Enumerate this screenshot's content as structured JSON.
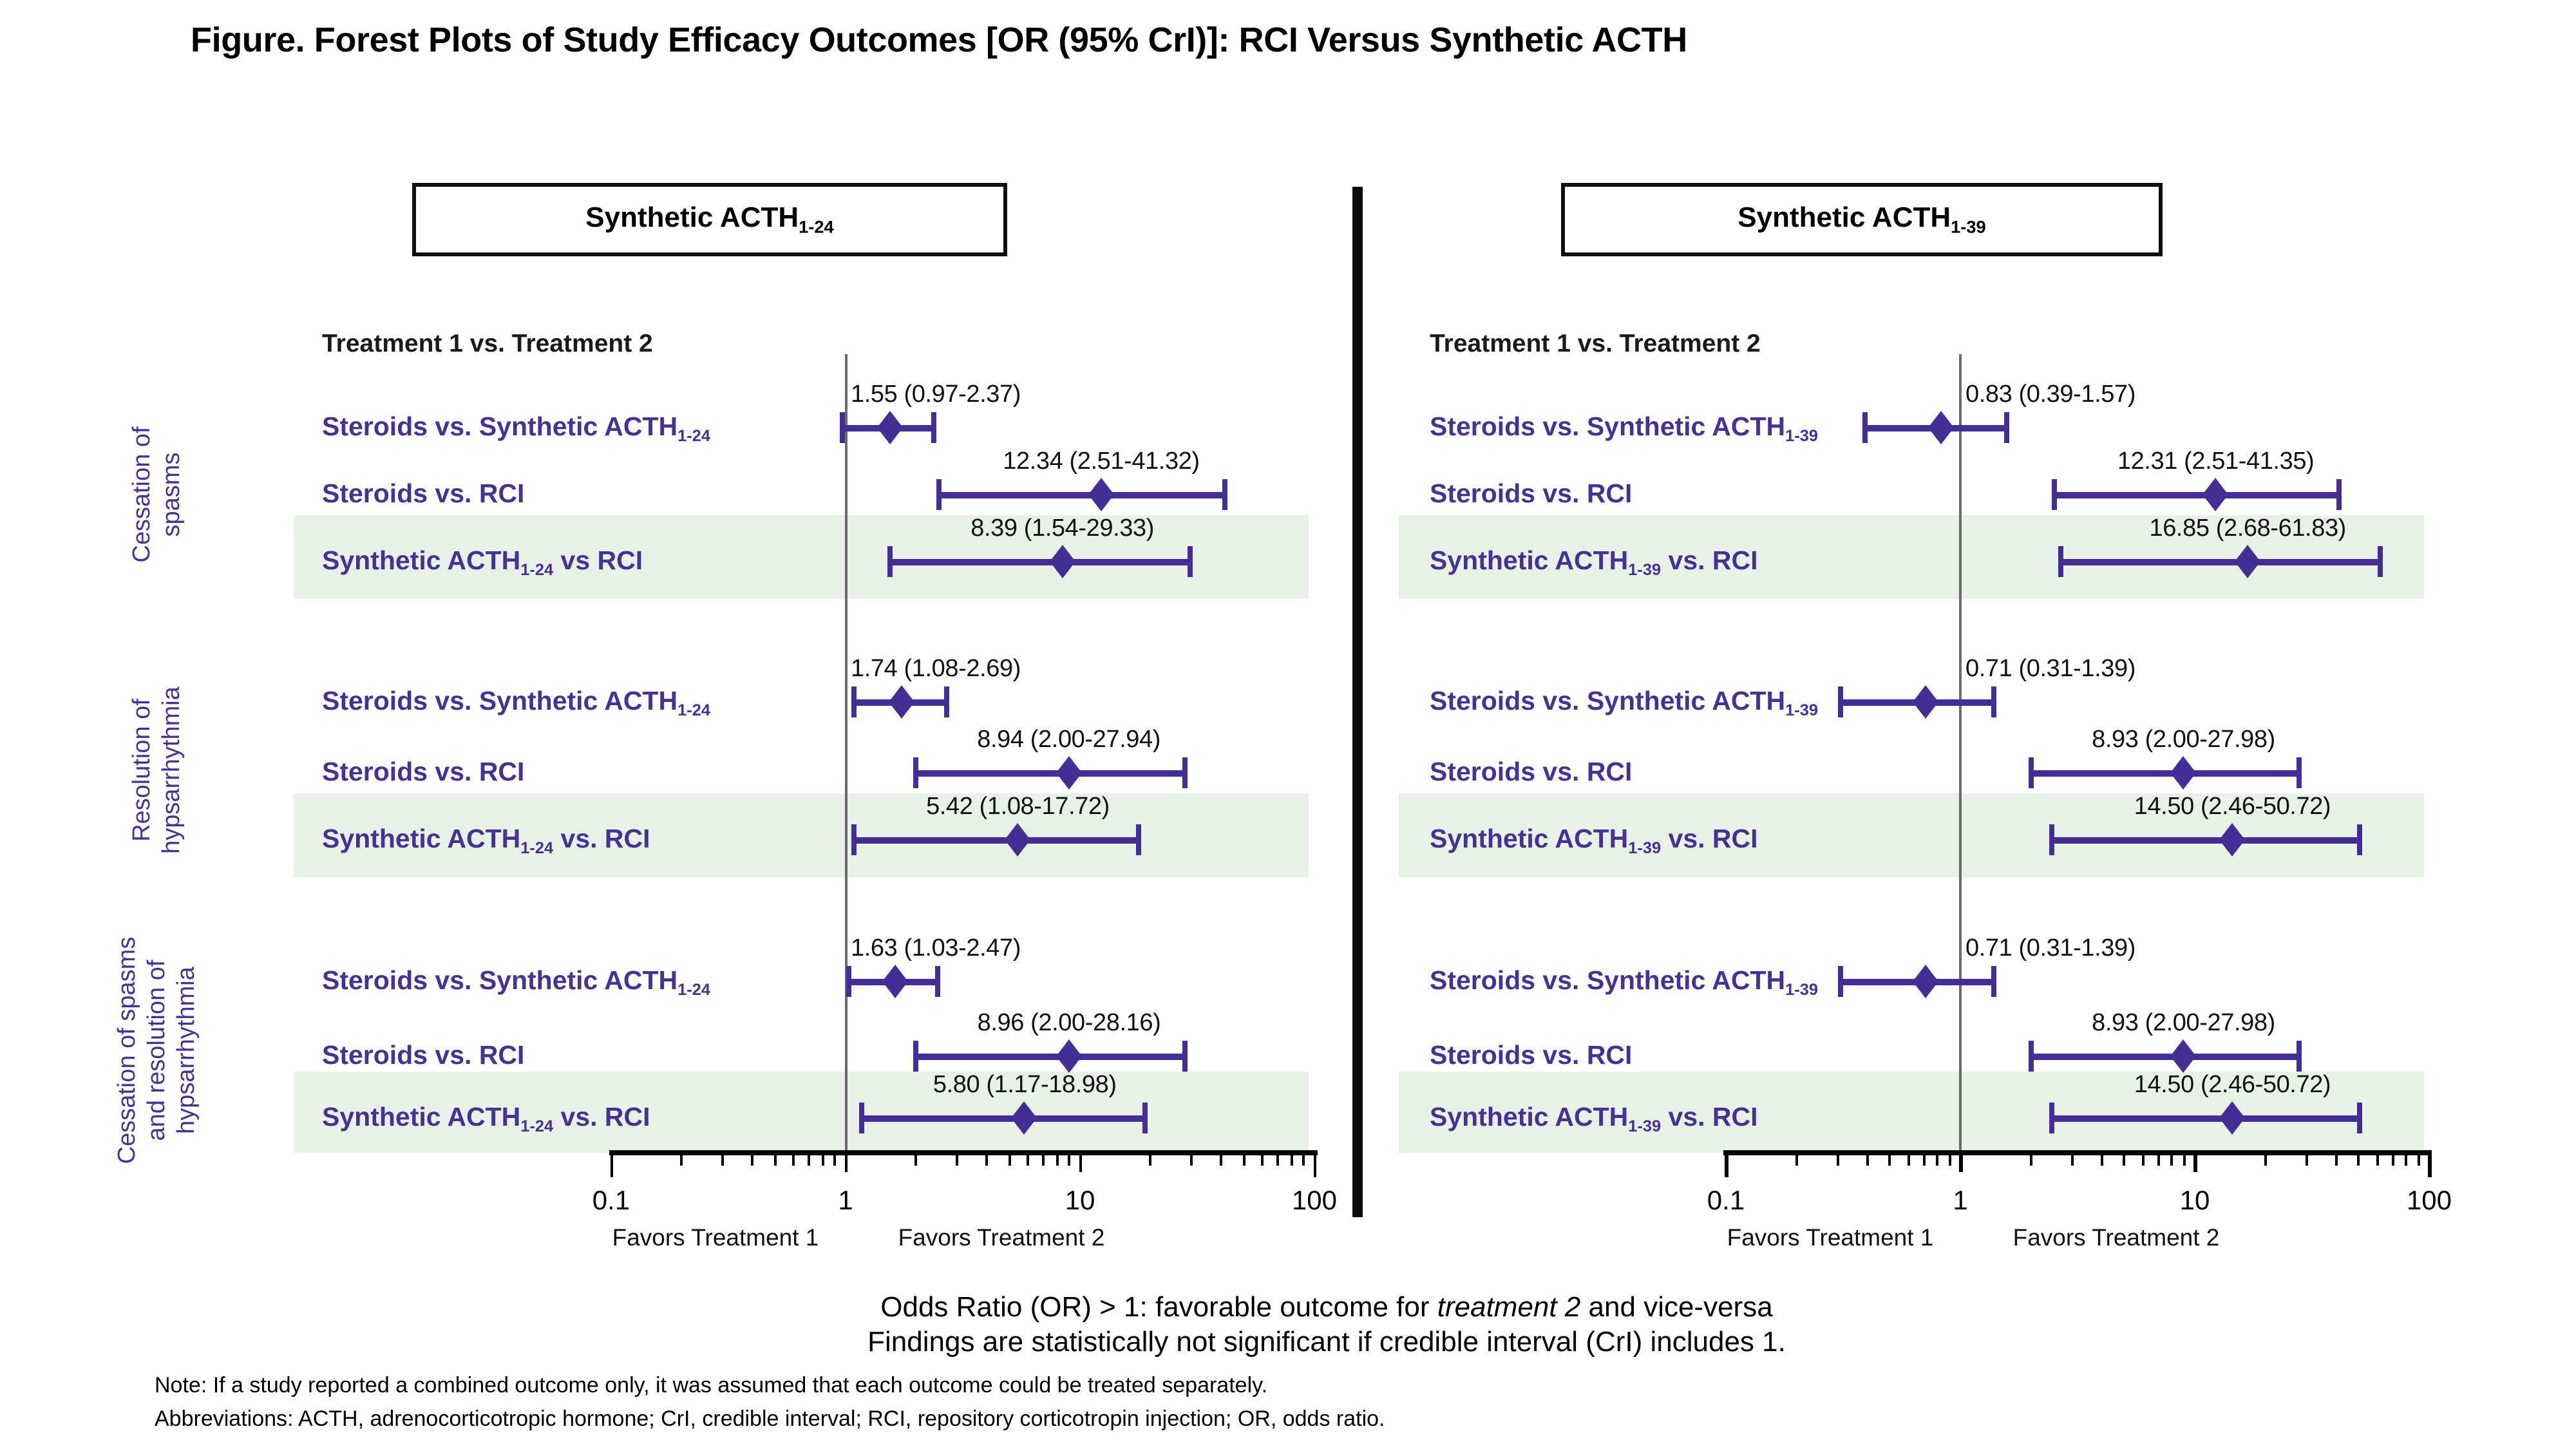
{
  "title": "Figure. Forest Plots of Study Efficacy Outcomes [OR (95% CrI)]: RCI Versus Synthetic ACTH",
  "colors": {
    "marker_purple": "#452D96",
    "label_purple": "#473293",
    "highlight_band_green": "#E7F1E6",
    "axis_black": "#000000",
    "reference_line_gray": "#6a6a6a"
  },
  "chart_data": {
    "type": "forest",
    "x_axis": {
      "scale": "log10",
      "range": [
        0.1,
        100
      ],
      "ticks": [
        0.1,
        1,
        10,
        100
      ],
      "tick_labels": [
        "0.1",
        "1",
        "10",
        "100"
      ],
      "reference_line": 1,
      "grid": false
    },
    "panels": [
      {
        "title": "Synthetic ACTH",
        "title_sub": "1-24",
        "column_header": "Treatment 1 vs. Treatment 2",
        "favors_left": "Favors Treatment 1",
        "favors_right": "Favors Treatment 2",
        "outcome_groups": [
          {
            "outcome": "Cessation of spasms",
            "comparisons": [
              {
                "label": "Steroids vs. Synthetic ACTH",
                "sub": "1-24",
                "suffix": "",
                "or": 1.55,
                "ci_low": 0.97,
                "ci_high": 2.37,
                "text": "1.55 (0.97-2.37)",
                "highlighted": false
              },
              {
                "label": "Steroids vs. RCI",
                "sub": "",
                "suffix": "",
                "or": 12.34,
                "ci_low": 2.51,
                "ci_high": 41.32,
                "text": "12.34 (2.51-41.32)",
                "highlighted": false
              },
              {
                "label": "Synthetic ACTH",
                "sub": "1-24",
                "suffix": " vs RCI",
                "or": 8.39,
                "ci_low": 1.54,
                "ci_high": 29.33,
                "text": "8.39 (1.54-29.33)",
                "highlighted": true
              }
            ]
          },
          {
            "outcome": "Resolution of hypsarrhythmia",
            "comparisons": [
              {
                "label": "Steroids vs. Synthetic ACTH",
                "sub": "1-24",
                "suffix": "",
                "or": 1.74,
                "ci_low": 1.08,
                "ci_high": 2.69,
                "text": "1.74 (1.08-2.69)",
                "highlighted": false
              },
              {
                "label": "Steroids vs. RCI",
                "sub": "",
                "suffix": "",
                "or": 8.94,
                "ci_low": 2.0,
                "ci_high": 27.94,
                "text": "8.94 (2.00-27.94)",
                "highlighted": false
              },
              {
                "label": "Synthetic ACTH",
                "sub": "1-24",
                "suffix": " vs. RCI",
                "or": 5.42,
                "ci_low": 1.08,
                "ci_high": 17.72,
                "text": "5.42 (1.08-17.72)",
                "highlighted": true
              }
            ]
          },
          {
            "outcome": "Cessation of spasms and resolution of hypsarrhythmia",
            "comparisons": [
              {
                "label": "Steroids vs. Synthetic ACTH",
                "sub": "1-24",
                "suffix": "",
                "or": 1.63,
                "ci_low": 1.03,
                "ci_high": 2.47,
                "text": "1.63 (1.03-2.47)",
                "highlighted": false
              },
              {
                "label": "Steroids vs. RCI",
                "sub": "",
                "suffix": "",
                "or": 8.96,
                "ci_low": 2.0,
                "ci_high": 28.16,
                "text": "8.96 (2.00-28.16)",
                "highlighted": false
              },
              {
                "label": "Synthetic ACTH",
                "sub": "1-24",
                "suffix": " vs. RCI",
                "or": 5.8,
                "ci_low": 1.17,
                "ci_high": 18.98,
                "text": "5.80 (1.17-18.98)",
                "highlighted": true
              }
            ]
          }
        ]
      },
      {
        "title": "Synthetic ACTH",
        "title_sub": "1-39",
        "column_header": "Treatment 1 vs. Treatment 2",
        "favors_left": "Favors Treatment 1",
        "favors_right": "Favors Treatment 2",
        "outcome_groups": [
          {
            "outcome": "Cessation of spasms",
            "comparisons": [
              {
                "label": "Steroids vs. Synthetic ACTH",
                "sub": "1-39",
                "suffix": "",
                "or": 0.83,
                "ci_low": 0.39,
                "ci_high": 1.57,
                "text": "0.83 (0.39-1.57)",
                "highlighted": false
              },
              {
                "label": "Steroids vs. RCI",
                "sub": "",
                "suffix": "",
                "or": 12.31,
                "ci_low": 2.51,
                "ci_high": 41.35,
                "text": "12.31 (2.51-41.35)",
                "highlighted": false
              },
              {
                "label": "Synthetic ACTH",
                "sub": "1-39",
                "suffix": " vs. RCI",
                "or": 16.85,
                "ci_low": 2.68,
                "ci_high": 61.83,
                "text": "16.85 (2.68-61.83)",
                "highlighted": true
              }
            ]
          },
          {
            "outcome": "Resolution of hypsarrhythmia",
            "comparisons": [
              {
                "label": "Steroids vs. Synthetic ACTH",
                "sub": "1-39",
                "suffix": "",
                "or": 0.71,
                "ci_low": 0.31,
                "ci_high": 1.39,
                "text": "0.71 (0.31-1.39)",
                "highlighted": false
              },
              {
                "label": "Steroids vs. RCI",
                "sub": "",
                "suffix": "",
                "or": 8.93,
                "ci_low": 2.0,
                "ci_high": 27.98,
                "text": "8.93 (2.00-27.98)",
                "highlighted": false
              },
              {
                "label": "Synthetic ACTH",
                "sub": "1-39",
                "suffix": " vs. RCI",
                "or": 14.5,
                "ci_low": 2.46,
                "ci_high": 50.72,
                "text": "14.50 (2.46-50.72)",
                "highlighted": true
              }
            ]
          },
          {
            "outcome": "Cessation of spasms and resolution of hypsarrhythmia",
            "comparisons": [
              {
                "label": "Steroids vs. Synthetic ACTH",
                "sub": "1-39",
                "suffix": "",
                "or": 0.71,
                "ci_low": 0.31,
                "ci_high": 1.39,
                "text": "0.71 (0.31-1.39)",
                "highlighted": false
              },
              {
                "label": "Steroids vs. RCI",
                "sub": "",
                "suffix": "",
                "or": 8.93,
                "ci_low": 2.0,
                "ci_high": 27.98,
                "text": "8.93 (2.00-27.98)",
                "highlighted": false
              },
              {
                "label": "Synthetic ACTH",
                "sub": "1-39",
                "suffix": " vs. RCI",
                "or": 14.5,
                "ci_low": 2.46,
                "ci_high": 50.72,
                "text": "14.50 (2.46-50.72)",
                "highlighted": true
              }
            ]
          }
        ]
      }
    ]
  },
  "outcome_labels": [
    {
      "lines": [
        "Cessation of",
        "spasms"
      ]
    },
    {
      "lines": [
        "Resolution of",
        "hypsarrhythmia"
      ]
    },
    {
      "lines": [
        "Cessation of spasms",
        "and resolution of",
        "hypsarrhythmia"
      ]
    }
  ],
  "footer": {
    "line1_prefix": "Odds Ratio (OR) > 1: favorable outcome for ",
    "line1_italic": "treatment 2",
    "line1_suffix": " and vice-versa",
    "line2": "Findings are statistically not significant if credible interval (CrI) includes 1.",
    "note1": "Note: If a study reported a combined outcome only, it was assumed that each outcome could be treated separately.",
    "note2": "Abbreviations: ACTH, adrenocorticotropic hormone; CrI, credible interval; RCI, repository corticotropin injection; OR, odds ratio."
  }
}
